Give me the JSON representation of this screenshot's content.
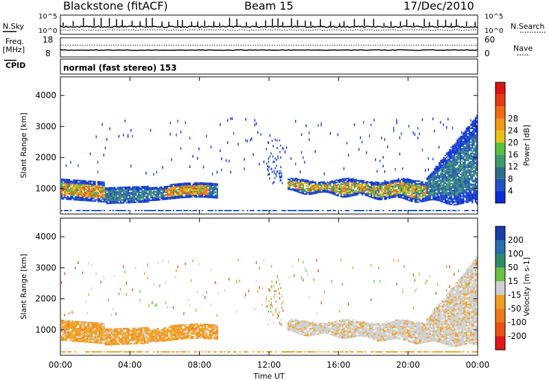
{
  "header": {
    "title": "Blackstone (fitACF)",
    "beam": "Beam 15",
    "date": "17/Dec/2010",
    "cpid": "normal (fast stereo) 153"
  },
  "strip_labels": {
    "nsky": "N.Sky",
    "nsearch": "N.Search",
    "freq": "Freq.",
    "mhz": "[MHz]",
    "cpid": "CPID",
    "nave": "Nave",
    "nsky_top": "10^5",
    "nsky_bottom": "10^0",
    "nsearch_top": "10^5",
    "nsearch_bottom": "10^0",
    "freq_top": "18",
    "freq_bottom": "8",
    "nave_top": "60",
    "nave_bottom": "0"
  },
  "chart_data": [
    {
      "type": "heatmap",
      "panel": "power",
      "xlabel": "",
      "ylabel": "Slant Range [km]",
      "ylim": [
        180,
        4600
      ],
      "yticks": [
        "1000",
        "2000",
        "3000",
        "4000"
      ],
      "colorbar": {
        "label": "Power [dB]",
        "ticks": [
          "4",
          "8",
          "12",
          "16",
          "20",
          "24",
          "28"
        ],
        "colors": [
          "#0a2bd8",
          "#1f52c4",
          "#2f6f8a",
          "#3f9b6e",
          "#58c23c",
          "#e8c21a",
          "#f39a12",
          "#f06a10",
          "#e83a10",
          "#dc1212"
        ]
      }
    },
    {
      "type": "heatmap",
      "panel": "velocity",
      "xlabel": "Time UT",
      "ylabel": "Slant Range [km]",
      "ylim": [
        180,
        4600
      ],
      "xticks": [
        "00:00",
        "04:00",
        "08:00",
        "12:00",
        "16:00",
        "20:00",
        "00:00"
      ],
      "yticks": [
        "1000",
        "2000",
        "3000",
        "4000"
      ],
      "colorbar": {
        "label": "Velocity [m s-1]",
        "ticks": [
          "200",
          "100",
          "50",
          "15",
          "-15",
          "-50",
          "-100",
          "-200"
        ],
        "colors": [
          "#1a3ea8",
          "#2a6fb0",
          "#2e8b6a",
          "#6cc043",
          "#cfcfcf",
          "#f0a020",
          "#f07a18",
          "#ec5212",
          "#e21818"
        ]
      }
    }
  ]
}
